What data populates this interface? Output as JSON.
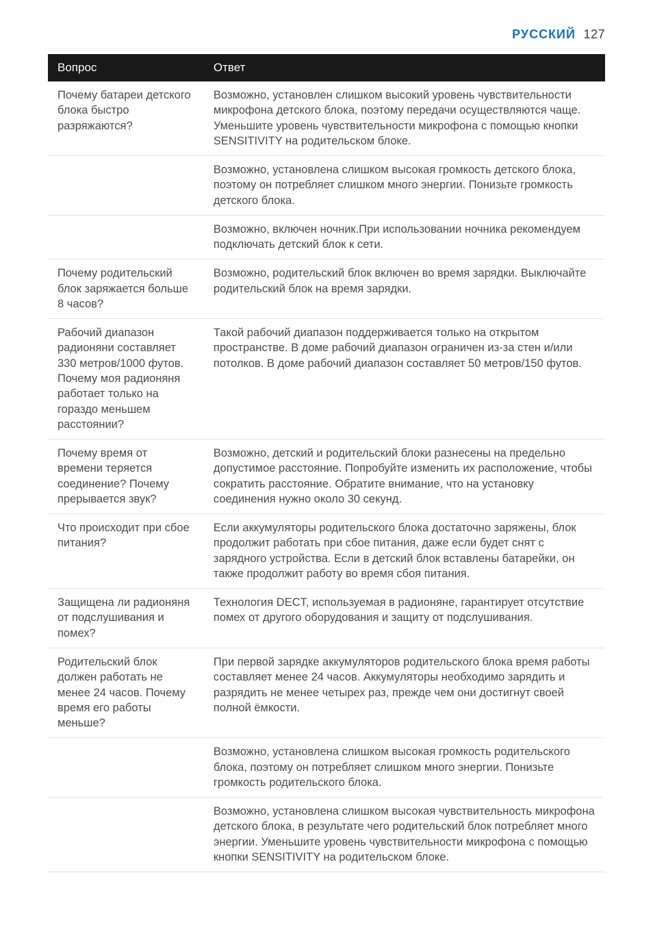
{
  "header": {
    "language": "РУССКИЙ",
    "page_number": "127"
  },
  "table": {
    "columns": {
      "question": "Вопрос",
      "answer": "Ответ"
    },
    "rows": [
      {
        "q": "Почему батареи детского блока быстро разряжаются?",
        "a": "Возможно, установлен слишком высокий уровень чувствительности микрофона детского блока, поэтому передачи осуществляются чаще. Уменьшите уровень чувствительности микрофона с помощью кнопки SENSITIVITY на родительском блоке."
      },
      {
        "q": "",
        "a": "Возможно, установлена слишком высокая громкость детского блока, поэтому он потребляет слишком много энергии. Понизьте громкость детского блока."
      },
      {
        "q": "",
        "a": "Возможно, включен ночник.При использовании ночника рекомендуем подключать детский блок к сети."
      },
      {
        "q": "Почему родительский блок заряжается больше 8 часов?",
        "a": "Возможно, родительский блок включен во время зарядки. Выключайте родительский блок на время зарядки."
      },
      {
        "q": "Рабочий диапазон радионяни составляет 330 метров/1000 футов. Почему моя радионяня работает только на гораздо меньшем расстоянии?",
        "a": "Такой рабочий диапазон поддерживается только на открытом пространстве. В доме рабочий диапазон ограничен из-за стен и/или потолков. В доме рабочий диапазон составляет 50 метров/150 футов."
      },
      {
        "q": "Почему время от времени теряется соединение? Почему прерывается звук?",
        "a": "Возможно, детский и родительский блоки разнесены на предельно допустимое расстояние. Попробуйте изменить их расположение, чтобы сократить расстояние. Обратите внимание, что на установку соединения нужно около 30 секунд."
      },
      {
        "q": "Что происходит при сбое питания?",
        "a": "Если аккумуляторы родительского блока достаточно заряжены, блок продолжит работать при сбое питания, даже если будет снят с зарядного устройства. Если в детский блок вставлены батарейки, он также продолжит работу во время сбоя питания."
      },
      {
        "q": "Защищена ли радионяня от подслушивания и помех?",
        "a": "Технология DECT, используемая в радионяне, гарантирует отсутствие помех от другого оборудования и защиту от подслушивания."
      },
      {
        "q": "Родительский блок должен работать не менее 24 часов. Почему время его работы меньше?",
        "a": "При первой зарядке аккумуляторов родительского блока время работы составляет менее 24 часов. Аккумуляторы необходимо зарядить и разрядить не менее четырех раз, прежде чем они достигнут своей полной ёмкости."
      },
      {
        "q": "",
        "a": "Возможно, установлена слишком высокая громкость родительского блока, поэтому он потребляет слишком много энергии. Понизьте громкость родительского блока."
      },
      {
        "q": "",
        "a": "Возможно, установлена слишком высокая чувствительность микрофона детского блока, в результате чего родительский блок потребляет много энергии. Уменьшите уровень чувствительности микрофона с помощью кнопки SENSITIVITY на родительском блоке."
      }
    ]
  },
  "styles": {
    "page_bg": "#ffffff",
    "text_color": "#4a4a4a",
    "header_lang_color": "#1a6fb6",
    "thead_bg": "#191919",
    "thead_color": "#ffffff",
    "row_border_color": "#e3e3e3",
    "body_font_size_pt": 12,
    "header_font_size_pt": 13,
    "col_widths_pct": [
      28,
      72
    ]
  }
}
